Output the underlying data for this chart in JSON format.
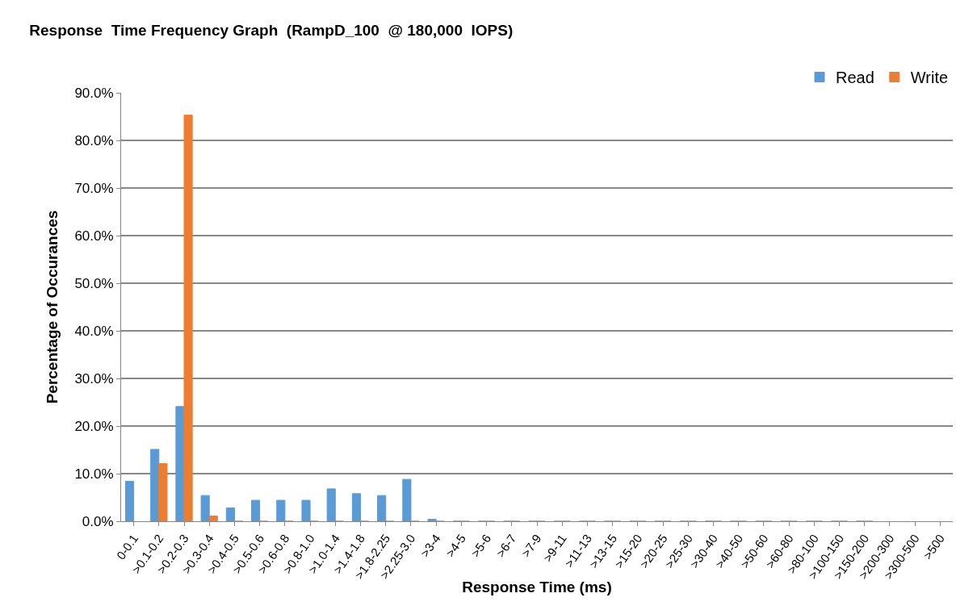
{
  "chart_data": {
    "type": "bar",
    "title": "Response  Time Frequency Graph  (RampD_100  @ 180,000  IOPS)",
    "xlabel": "Response Time (ms)",
    "ylabel": "Percentage of Occurances",
    "categories": [
      "0-0.1",
      ">0.1-0.2",
      ">0.2-0.3",
      ">0.3-0.4",
      ">0.4-0.5",
      ">0.5-0.6",
      ">0.6-0.8",
      ">0.8-1.0",
      ">1.0-1.4",
      ">1.4-1.8",
      ">1.8-2.25",
      ">2.25-3.0",
      ">3-4",
      ">4-5",
      ">5-6",
      ">6-7",
      ">7-9",
      ">9-11",
      ">11-13",
      ">13-15",
      ">15-20",
      ">20-25",
      ">25-30",
      ">30-40",
      ">40-50",
      ">50-60",
      ">60-80",
      ">80-100",
      ">100-150",
      ">150-200",
      ">200-300",
      ">300-500",
      ">500"
    ],
    "series": [
      {
        "name": "Read",
        "color": "#5b9bd5",
        "values": [
          8.4,
          15.1,
          24.1,
          5.4,
          2.8,
          4.4,
          4.4,
          4.4,
          6.8,
          5.8,
          5.4,
          8.8,
          0.4,
          0,
          0,
          0,
          0,
          0,
          0,
          0,
          0,
          0,
          0,
          0,
          0,
          0,
          0,
          0,
          0,
          0,
          null,
          null,
          null
        ]
      },
      {
        "name": "Write",
        "color": "#ed7d31",
        "values": [
          null,
          12.1,
          85.3,
          1.1,
          0,
          0,
          0,
          0,
          0,
          0,
          0,
          0,
          0,
          0,
          0,
          0,
          0,
          0,
          0,
          0,
          0,
          0,
          0,
          0,
          0,
          0,
          0,
          0,
          0,
          0,
          null,
          null,
          null
        ]
      }
    ],
    "ylim": [
      0,
      90
    ],
    "yticks": [
      {
        "value": 0,
        "label": "0.0%"
      },
      {
        "value": 10,
        "label": "10.0%"
      },
      {
        "value": 20,
        "label": "20.0%"
      },
      {
        "value": 30,
        "label": "30.0%"
      },
      {
        "value": 40,
        "label": "40.0%"
      },
      {
        "value": 50,
        "label": "50.0%"
      },
      {
        "value": 60,
        "label": "60.0%"
      },
      {
        "value": 70,
        "label": "70.0%"
      },
      {
        "value": 80,
        "label": "80.0%"
      },
      {
        "value": 90,
        "label": "90.0%"
      }
    ],
    "grid": "y",
    "legend": "top right"
  }
}
